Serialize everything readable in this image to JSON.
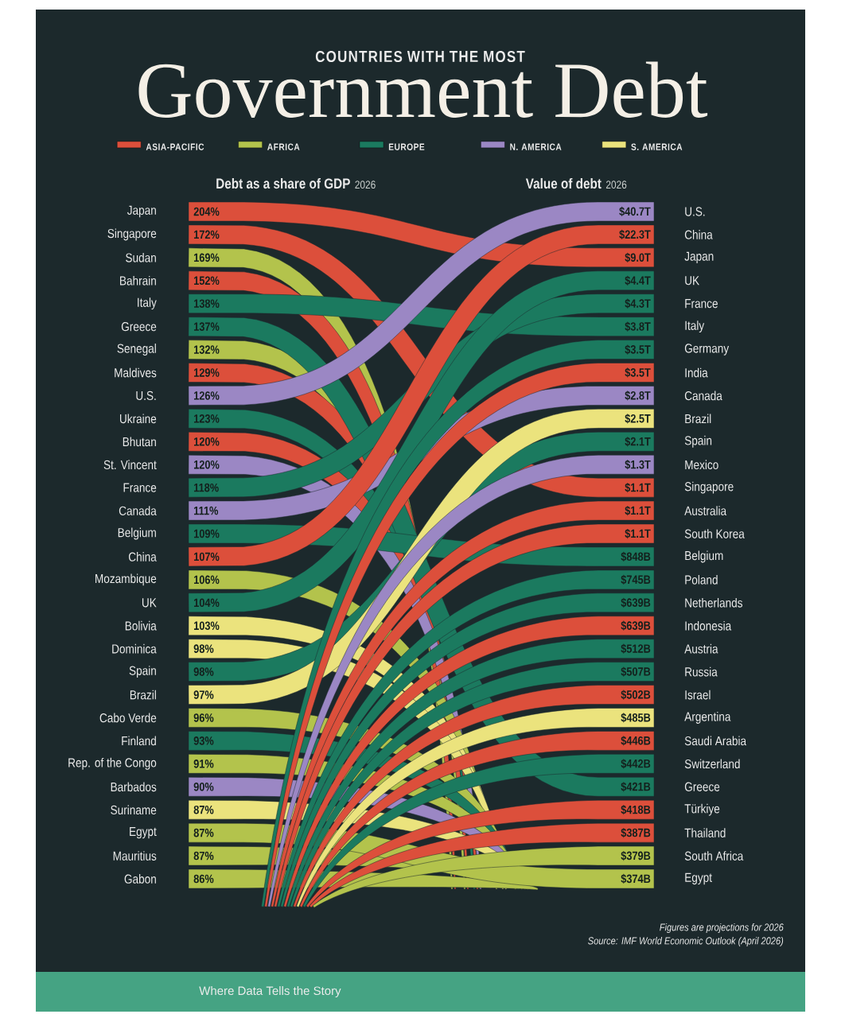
{
  "chart_data": [
    {
      "type": "other",
      "subtitle": "COUNTRIES WITH THE MOST",
      "title": "Government Debt",
      "series": [
        {
          "name": "ASIA-PACIFIC",
          "color": "#dc4f3b"
        },
        {
          "name": "AFRICA",
          "color": "#b3c34c"
        },
        {
          "name": "EUROPE",
          "color": "#1b7a5f"
        },
        {
          "name": "N. AMERICA",
          "color": "#9b87c4"
        },
        {
          "name": "S. AMERICA",
          "color": "#ebe37d"
        }
      ],
      "legend": "top",
      "annotations": [
        "Figures are projections for 2026",
        "Source: IMF World Economic Outlook (April 2026)",
        "Where Data Tells the Story"
      ]
    },
    {
      "type": "other",
      "title": "Debt as a share of GDP",
      "subtitle": "2026",
      "categories": [
        "Japan",
        "Singapore",
        "Sudan",
        "Bahrain",
        "Italy",
        "Greece",
        "Senegal",
        "Maldives",
        "U.S.",
        "Ukraine",
        "Bhutan",
        "St. Vincent",
        "France",
        "Canada",
        "Belgium",
        "China",
        "Mozambique",
        "UK",
        "Bolivia",
        "Dominica",
        "Spain",
        "Brazil",
        "Cabo Verde",
        "Finland",
        "Rep. of the Congo",
        "Barbados",
        "Suriname",
        "Egypt",
        "Mauritius",
        "Gabon"
      ],
      "values": [
        204,
        172,
        169,
        152,
        138,
        137,
        132,
        129,
        126,
        123,
        120,
        120,
        118,
        111,
        109,
        107,
        106,
        104,
        103,
        98,
        98,
        97,
        96,
        93,
        91,
        90,
        87,
        87,
        87,
        86
      ],
      "value_labels": [
        "204%",
        "172%",
        "169%",
        "152%",
        "138%",
        "137%",
        "132%",
        "129%",
        "126%",
        "123%",
        "120%",
        "120%",
        "118%",
        "111%",
        "109%",
        "107%",
        "106%",
        "104%",
        "103%",
        "98%",
        "98%",
        "97%",
        "96%",
        "93%",
        "91%",
        "90%",
        "87%",
        "87%",
        "87%",
        "86%"
      ],
      "colors": [
        "#dc4f3b",
        "#dc4f3b",
        "#b3c34c",
        "#dc4f3b",
        "#1b7a5f",
        "#1b7a5f",
        "#b3c34c",
        "#dc4f3b",
        "#9b87c4",
        "#1b7a5f",
        "#dc4f3b",
        "#9b87c4",
        "#1b7a5f",
        "#9b87c4",
        "#1b7a5f",
        "#dc4f3b",
        "#b3c34c",
        "#1b7a5f",
        "#ebe37d",
        "#ebe37d",
        "#1b7a5f",
        "#ebe37d",
        "#b3c34c",
        "#1b7a5f",
        "#b3c34c",
        "#9b87c4",
        "#ebe37d",
        "#b3c34c",
        "#b3c34c",
        "#b3c34c"
      ]
    },
    {
      "type": "other",
      "title": "Value of debt",
      "subtitle": "2026",
      "categories": [
        "U.S.",
        "China",
        "Japan",
        "UK",
        "France",
        "Italy",
        "Germany",
        "India",
        "Canada",
        "Brazil",
        "Spain",
        "Mexico",
        "Singapore",
        "Australia",
        "South Korea",
        "Belgium",
        "Poland",
        "Netherlands",
        "Indonesia",
        "Austria",
        "Russia",
        "Israel",
        "Argentina",
        "Saudi Arabia",
        "Switzerland",
        "Greece",
        "Türkiye",
        "Thailand",
        "South Africa",
        "Egypt"
      ],
      "values": [
        40700000000000.0,
        22300000000000.0,
        9000000000000.0,
        4400000000000.0,
        4300000000000.0,
        3800000000000.0,
        3500000000000.0,
        3500000000000.0,
        2800000000000.0,
        2500000000000.0,
        2100000000000.0,
        1300000000000.0,
        1100000000000.0,
        1100000000000.0,
        1100000000000.0,
        848000000000.0,
        745000000000.0,
        639000000000.0,
        639000000000.0,
        512000000000.0,
        507000000000.0,
        502000000000.0,
        485000000000.0,
        446000000000.0,
        442000000000.0,
        421000000000.0,
        418000000000.0,
        387000000000.0,
        379000000000.0,
        374000000000.0
      ],
      "value_labels": [
        "$40.7T",
        "$22.3T",
        "$9.0T",
        "$4.4T",
        "$4.3T",
        "$3.8T",
        "$3.5T",
        "$3.5T",
        "$2.8T",
        "$2.5T",
        "$2.1T",
        "$1.3T",
        "$1.1T",
        "$1.1T",
        "$1.1T",
        "$848B",
        "$745B",
        "$639B",
        "$639B",
        "$512B",
        "$507B",
        "$502B",
        "$485B",
        "$446B",
        "$442B",
        "$421B",
        "$418B",
        "$387B",
        "$379B",
        "$374B"
      ],
      "colors": [
        "#9b87c4",
        "#dc4f3b",
        "#dc4f3b",
        "#1b7a5f",
        "#1b7a5f",
        "#1b7a5f",
        "#1b7a5f",
        "#dc4f3b",
        "#9b87c4",
        "#ebe37d",
        "#1b7a5f",
        "#9b87c4",
        "#dc4f3b",
        "#dc4f3b",
        "#dc4f3b",
        "#1b7a5f",
        "#1b7a5f",
        "#1b7a5f",
        "#dc4f3b",
        "#1b7a5f",
        "#1b7a5f",
        "#dc4f3b",
        "#ebe37d",
        "#dc4f3b",
        "#1b7a5f",
        "#1b7a5f",
        "#dc4f3b",
        "#dc4f3b",
        "#b3c34c",
        "#b3c34c"
      ]
    }
  ]
}
